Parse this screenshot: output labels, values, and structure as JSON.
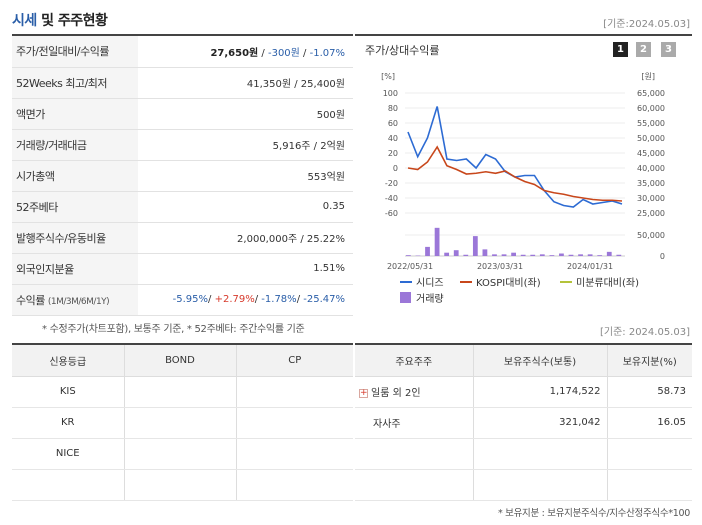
{
  "header": {
    "title_part1": "시세",
    "title_part2": "및 주주현황",
    "date": "[기준:2024.05.03]"
  },
  "info_rows": [
    {
      "label": "주가/전일대비/수익률",
      "price": "27,650원",
      "change": "-300원",
      "sep": " / ",
      "rate": "-1.07%"
    },
    {
      "label": "52Weeks 최고/최저",
      "value": "41,350원 / 25,400원"
    },
    {
      "label": "액면가",
      "value": "500원"
    },
    {
      "label": "거래량/거래대금",
      "value": "5,916주 / 2억원"
    },
    {
      "label": "시가총액",
      "value": "553억원"
    },
    {
      "label": "52주베타",
      "value": "0.35"
    },
    {
      "label": "발행주식수/유동비율",
      "value": "2,000,000주 / 25.22%"
    },
    {
      "label": "외국인지분율",
      "value": "1.51%"
    },
    {
      "label": "수익률",
      "label_small": "(1M/3M/6M/1Y)",
      "r1": "-5.95%",
      "r2": "+2.79%",
      "r3": "-1.78%",
      "r4": "-25.47%"
    }
  ],
  "note1": "* 수정주가(차트포함), 보통주 기준, * 52주베타: 주간수익률 기준",
  "date2": "[기준: 2024.05.03]",
  "chart": {
    "header": "주가/상대수익률",
    "pages": [
      "1",
      "2",
      "3"
    ]
  },
  "chart_data": {
    "type": "line",
    "left_unit": "[%]",
    "right_unit": "[원]",
    "left_ticks": [
      "100",
      "80",
      "60",
      "40",
      "20",
      "0",
      "-20",
      "-40",
      "-60"
    ],
    "right_ticks": [
      "65,000",
      "60,000",
      "55,000",
      "50,000",
      "45,000",
      "40,000",
      "35,000",
      "30,000",
      "25,000"
    ],
    "volume_ticks": [
      "50,000",
      "0"
    ],
    "x_labels": [
      "2022/05/31",
      "2023/03/31",
      "2024/01/31"
    ],
    "ylim": [
      -60,
      100
    ],
    "series": [
      {
        "name": "시디즈",
        "color": "#2d6bd3",
        "values": [
          48,
          15,
          40,
          82,
          12,
          10,
          12,
          0,
          18,
          12,
          -5,
          -12,
          -10,
          -10,
          -30,
          -45,
          -50,
          -52,
          -42,
          -48,
          -46,
          -44,
          -48
        ]
      },
      {
        "name": "KOSPI대비(좌)",
        "color": "#c8471b",
        "values": [
          0,
          -2,
          8,
          28,
          3,
          -2,
          -8,
          -7,
          -5,
          -7,
          -4,
          -12,
          -18,
          -22,
          -30,
          -33,
          -35,
          -38,
          -40,
          -42,
          -43,
          -43,
          -44
        ]
      },
      {
        "name": "미분류대비(좌)",
        "color": "#b4c33a",
        "values": []
      }
    ],
    "volume_name": "거래량",
    "volume_color": "#9b77d8",
    "volume": [
      2,
      1,
      22,
      68,
      8,
      14,
      3,
      48,
      16,
      4,
      4,
      8,
      3,
      3,
      4,
      2,
      6,
      3,
      4,
      4,
      2,
      10,
      3
    ]
  },
  "left_table": {
    "headers": [
      "신용등급",
      "BOND",
      "CP"
    ],
    "rows": [
      [
        "KIS",
        "",
        ""
      ],
      [
        "KR",
        "",
        ""
      ],
      [
        "NICE",
        "",
        ""
      ],
      [
        "",
        "",
        ""
      ]
    ]
  },
  "right_table": {
    "headers": [
      "주요주주",
      "보유주식수(보통)",
      "보유지분(%)"
    ],
    "rows": [
      {
        "name": "일룸 외 2인",
        "shares": "1,174,522",
        "pct": "58.73",
        "expand": "+"
      },
      {
        "name": "자사주",
        "shares": "321,042",
        "pct": "16.05",
        "expand": ""
      },
      {
        "name": "",
        "shares": "",
        "pct": "",
        "expand": ""
      },
      {
        "name": "",
        "shares": "",
        "pct": "",
        "expand": ""
      }
    ]
  },
  "note2": "* 보유지분 : 보유지분주식수/지수산정주식수*100"
}
